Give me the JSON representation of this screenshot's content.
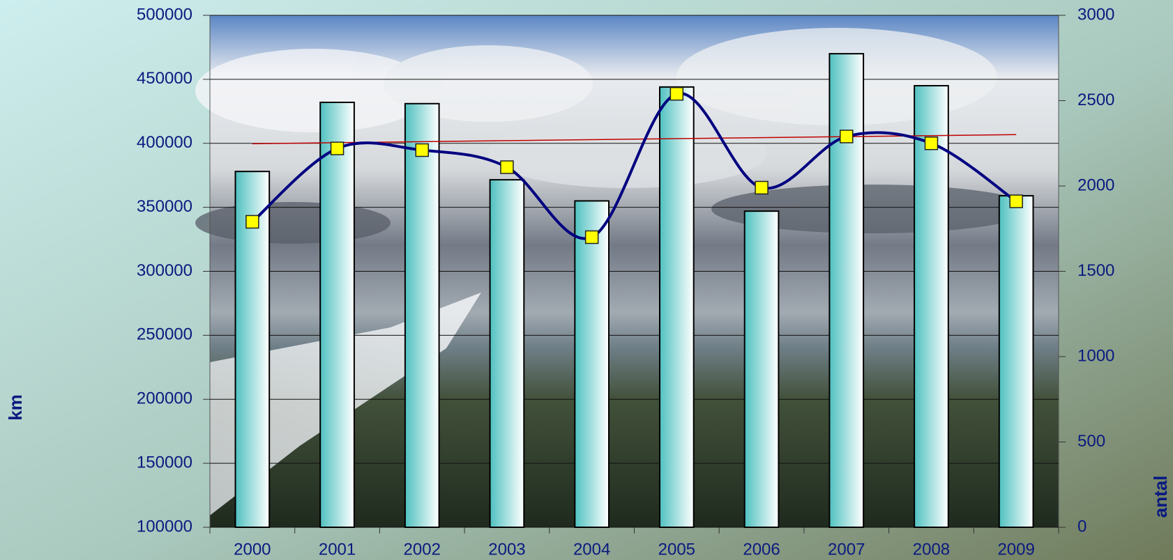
{
  "chart_data": {
    "type": "bar_line",
    "categories": [
      "2000",
      "2001",
      "2002",
      "2003",
      "2004",
      "2005",
      "2006",
      "2007",
      "2008",
      "2009"
    ],
    "series": [
      {
        "type": "bar",
        "color": "#4fc1c0",
        "values": [
          378000,
          432000,
          431000,
          371500,
          355000,
          444000,
          347000,
          470000,
          445000,
          359000
        ]
      },
      {
        "type": "line",
        "axis": "y2",
        "color": "#000080",
        "marker_color": "#ffff00",
        "smooth": true,
        "values": [
          1790,
          2220,
          2210,
          2110,
          1700,
          2540,
          1990,
          2290,
          2250,
          1910
        ]
      }
    ],
    "trendline": {
      "series": 0,
      "color": "#c00000"
    },
    "y_label": "km",
    "y2_label": "antal",
    "ylim": [
      100000,
      500000
    ],
    "yticks": [
      100000,
      150000,
      200000,
      250000,
      300000,
      350000,
      400000,
      450000,
      500000
    ],
    "y2lim": [
      0,
      3000
    ],
    "y2ticks": [
      0,
      500,
      1000,
      1500,
      2000,
      2500,
      3000
    ],
    "grid": true
  }
}
